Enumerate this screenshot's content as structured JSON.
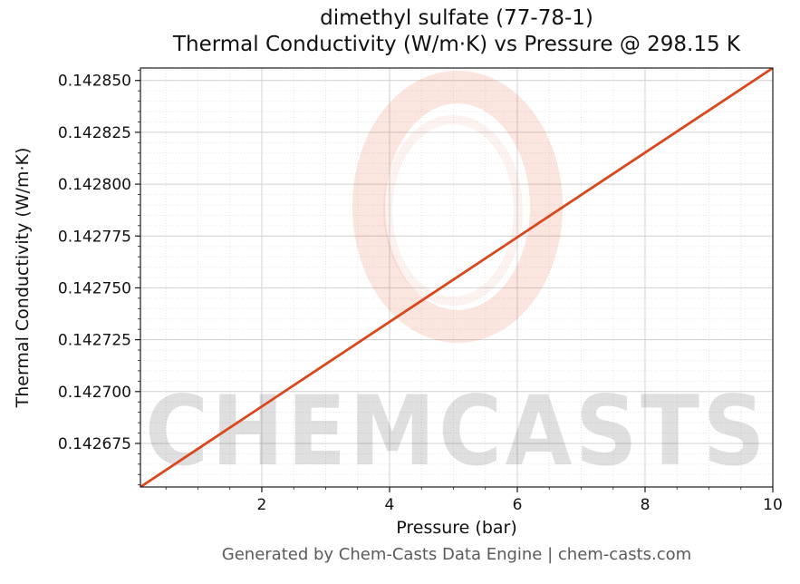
{
  "chart": {
    "title_line1": "dimethyl sulfate (77-78-1)",
    "title_line2": "Thermal Conductivity (W/m·K) vs Pressure @ 298.15 K",
    "xlabel": "Pressure (bar)",
    "ylabel": "Thermal Conductivity (W/m·K)"
  },
  "watermark": {
    "text": "CHEMCASTS",
    "color": "#d9481c"
  },
  "footer": {
    "text": "Generated by Chem-Casts Data Engine | chem-casts.com"
  },
  "chart_data": {
    "type": "line",
    "title": "dimethyl sulfate (77-78-1)\nThermal Conductivity (W/m·K) vs Pressure @ 298.15 K",
    "xlabel": "Pressure (bar)",
    "ylabel": "Thermal Conductivity (W/m·K)",
    "temperature_K": "298.15",
    "cas_number": "77-78-1",
    "xlim": [
      0.1,
      10
    ],
    "ylim": [
      0.142654,
      0.142856
    ],
    "x": [
      0.1,
      1,
      2,
      3,
      4,
      5,
      6,
      7,
      8,
      9,
      10
    ],
    "y": [
      0.142654,
      0.1426724,
      0.1426928,
      0.1427132,
      0.1427336,
      0.142754,
      0.1427744,
      0.1427948,
      0.1428152,
      0.1428356,
      0.142856
    ],
    "xticks": [
      2,
      4,
      6,
      8,
      10
    ],
    "xtick_labels": [
      "2",
      "4",
      "6",
      "8",
      "10"
    ],
    "yticks": [
      0.142675,
      0.1427,
      0.142725,
      0.14275,
      0.142775,
      0.1428,
      0.142825,
      0.14285
    ],
    "ytick_labels": [
      "0.142675",
      "0.142700",
      "0.142725",
      "0.142750",
      "0.142775",
      "0.142800",
      "0.142825",
      "0.142850"
    ],
    "minor_x_step": 0.5,
    "minor_y_step": 5e-06,
    "line_color": "#d9481c",
    "grid": true,
    "legend": false
  }
}
